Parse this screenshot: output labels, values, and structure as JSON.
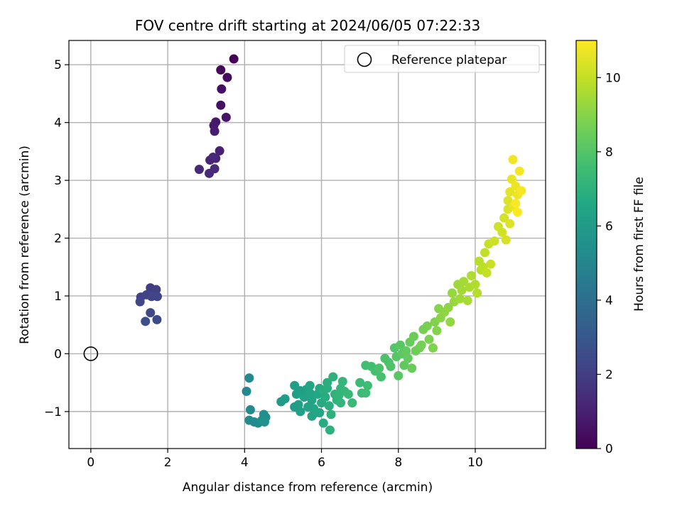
{
  "chart_data": {
    "type": "scatter",
    "title": "FOV centre drift starting at 2024/06/05 07:22:33",
    "xlabel": "Angular distance from reference (arcmin)",
    "ylabel": "Rotation from reference (arcmin)",
    "xlim": [
      -0.57,
      11.83
    ],
    "ylim": [
      -1.64,
      5.42
    ],
    "xticks": [
      0,
      2,
      4,
      6,
      8,
      10
    ],
    "yticks": [
      -1,
      0,
      1,
      2,
      3,
      4,
      5
    ],
    "xtick_labels": [
      "0",
      "2",
      "4",
      "6",
      "8",
      "10"
    ],
    "ytick_labels": [
      "−1",
      "0",
      "1",
      "2",
      "3",
      "4",
      "5"
    ],
    "grid": true,
    "legend": {
      "position": "top-right",
      "label": "Reference platepar"
    },
    "reference_point": {
      "x": 0,
      "y": 0
    },
    "colorbar": {
      "label": "Hours from first FF file",
      "range": [
        0,
        11
      ],
      "ticks": [
        0,
        2,
        4,
        6,
        8,
        10
      ],
      "tick_labels": [
        "0",
        "2",
        "4",
        "6",
        "8",
        "10"
      ],
      "colormap": "viridis"
    },
    "points": [
      {
        "x": 3.72,
        "y": 5.1,
        "h": 0.1
      },
      {
        "x": 3.38,
        "y": 4.91,
        "h": 0.2
      },
      {
        "x": 3.55,
        "y": 4.78,
        "h": 0.3
      },
      {
        "x": 3.4,
        "y": 4.58,
        "h": 0.4
      },
      {
        "x": 3.38,
        "y": 4.3,
        "h": 0.5
      },
      {
        "x": 3.52,
        "y": 4.09,
        "h": 0.6
      },
      {
        "x": 3.25,
        "y": 4.01,
        "h": 0.7
      },
      {
        "x": 3.2,
        "y": 3.95,
        "h": 0.8
      },
      {
        "x": 3.22,
        "y": 3.85,
        "h": 0.9
      },
      {
        "x": 3.35,
        "y": 3.51,
        "h": 1.0
      },
      {
        "x": 3.25,
        "y": 3.38,
        "h": 1.1
      },
      {
        "x": 3.1,
        "y": 3.35,
        "h": 1.15
      },
      {
        "x": 3.18,
        "y": 3.4,
        "h": 1.2
      },
      {
        "x": 2.82,
        "y": 3.19,
        "h": 1.25
      },
      {
        "x": 3.22,
        "y": 3.2,
        "h": 1.3
      },
      {
        "x": 3.08,
        "y": 3.12,
        "h": 1.35
      },
      {
        "x": 1.55,
        "y": 1.14,
        "h": 2.0
      },
      {
        "x": 1.7,
        "y": 1.11,
        "h": 2.05
      },
      {
        "x": 1.3,
        "y": 0.98,
        "h": 2.1
      },
      {
        "x": 1.45,
        "y": 1.02,
        "h": 2.15
      },
      {
        "x": 1.58,
        "y": 0.99,
        "h": 2.2
      },
      {
        "x": 1.73,
        "y": 0.99,
        "h": 2.25
      },
      {
        "x": 1.28,
        "y": 0.9,
        "h": 2.3
      },
      {
        "x": 1.55,
        "y": 0.71,
        "h": 2.4
      },
      {
        "x": 1.72,
        "y": 0.59,
        "h": 2.5
      },
      {
        "x": 1.42,
        "y": 0.56,
        "h": 2.6
      },
      {
        "x": 4.12,
        "y": -0.42,
        "h": 5.1
      },
      {
        "x": 4.05,
        "y": -0.65,
        "h": 5.15
      },
      {
        "x": 4.15,
        "y": -0.97,
        "h": 5.2
      },
      {
        "x": 4.12,
        "y": -1.15,
        "h": 5.25
      },
      {
        "x": 4.25,
        "y": -1.18,
        "h": 5.3
      },
      {
        "x": 4.35,
        "y": -1.2,
        "h": 5.35
      },
      {
        "x": 4.5,
        "y": -1.05,
        "h": 5.4
      },
      {
        "x": 4.55,
        "y": -1.1,
        "h": 5.45
      },
      {
        "x": 4.45,
        "y": -1.15,
        "h": 5.5
      },
      {
        "x": 4.52,
        "y": -1.18,
        "h": 5.55
      },
      {
        "x": 4.95,
        "y": -0.83,
        "h": 6.0
      },
      {
        "x": 5.05,
        "y": -0.78,
        "h": 6.05
      },
      {
        "x": 5.3,
        "y": -0.55,
        "h": 6.1
      },
      {
        "x": 5.35,
        "y": -0.7,
        "h": 6.15
      },
      {
        "x": 5.4,
        "y": -0.88,
        "h": 6.2
      },
      {
        "x": 5.45,
        "y": -1.0,
        "h": 6.25
      },
      {
        "x": 5.55,
        "y": -0.75,
        "h": 6.3
      },
      {
        "x": 5.6,
        "y": -0.62,
        "h": 6.35
      },
      {
        "x": 5.7,
        "y": -0.55,
        "h": 6.4
      },
      {
        "x": 5.75,
        "y": -0.8,
        "h": 6.45
      },
      {
        "x": 5.8,
        "y": -0.95,
        "h": 6.5
      },
      {
        "x": 5.85,
        "y": -1.02,
        "h": 6.55
      },
      {
        "x": 5.9,
        "y": -0.7,
        "h": 6.6
      },
      {
        "x": 5.95,
        "y": -0.6,
        "h": 6.65
      },
      {
        "x": 6.0,
        "y": -0.85,
        "h": 6.7
      },
      {
        "x": 6.05,
        "y": -1.2,
        "h": 6.75
      },
      {
        "x": 6.1,
        "y": -0.75,
        "h": 6.8
      },
      {
        "x": 6.15,
        "y": -0.5,
        "h": 6.85
      },
      {
        "x": 6.2,
        "y": -0.9,
        "h": 6.9
      },
      {
        "x": 6.25,
        "y": -1.05,
        "h": 6.95
      },
      {
        "x": 6.22,
        "y": -1.32,
        "h": 7.0
      },
      {
        "x": 5.3,
        "y": -0.92,
        "h": 6.05
      },
      {
        "x": 5.65,
        "y": -0.92,
        "h": 6.3
      },
      {
        "x": 5.75,
        "y": -1.08,
        "h": 6.4
      },
      {
        "x": 5.95,
        "y": -1.02,
        "h": 6.55
      },
      {
        "x": 6.3,
        "y": -0.4,
        "h": 7.0
      },
      {
        "x": 6.35,
        "y": -0.7,
        "h": 7.05
      },
      {
        "x": 6.4,
        "y": -0.8,
        "h": 7.1
      },
      {
        "x": 6.5,
        "y": -0.6,
        "h": 7.15
      },
      {
        "x": 6.55,
        "y": -0.48,
        "h": 7.2
      },
      {
        "x": 6.6,
        "y": -0.65,
        "h": 7.25
      },
      {
        "x": 6.7,
        "y": -0.7,
        "h": 7.3
      },
      {
        "x": 6.8,
        "y": -0.85,
        "h": 7.35
      },
      {
        "x": 6.5,
        "y": -0.85,
        "h": 7.2
      },
      {
        "x": 6.05,
        "y": -0.63,
        "h": 6.8
      },
      {
        "x": 5.7,
        "y": -0.68,
        "h": 6.45
      },
      {
        "x": 5.45,
        "y": -0.64,
        "h": 6.2
      },
      {
        "x": 6.45,
        "y": -0.72,
        "h": 7.15
      },
      {
        "x": 6.15,
        "y": -0.6,
        "h": 6.9
      },
      {
        "x": 7.0,
        "y": -0.5,
        "h": 7.4
      },
      {
        "x": 7.05,
        "y": -0.68,
        "h": 7.45
      },
      {
        "x": 7.15,
        "y": -0.68,
        "h": 7.5
      },
      {
        "x": 7.2,
        "y": -0.55,
        "h": 7.55
      },
      {
        "x": 7.15,
        "y": -0.2,
        "h": 7.6
      },
      {
        "x": 7.3,
        "y": -0.22,
        "h": 7.65
      },
      {
        "x": 7.4,
        "y": -0.3,
        "h": 7.7
      },
      {
        "x": 7.55,
        "y": -0.4,
        "h": 7.75
      },
      {
        "x": 7.5,
        "y": -0.25,
        "h": 7.8
      },
      {
        "x": 7.65,
        "y": -0.08,
        "h": 7.85
      },
      {
        "x": 7.75,
        "y": -0.15,
        "h": 7.9
      },
      {
        "x": 7.8,
        "y": -0.22,
        "h": 7.95
      },
      {
        "x": 7.9,
        "y": 0.1,
        "h": 8.0
      },
      {
        "x": 7.95,
        "y": -0.05,
        "h": 8.05
      },
      {
        "x": 8.0,
        "y": -0.38,
        "h": 8.1
      },
      {
        "x": 8.05,
        "y": 0.15,
        "h": 8.15
      },
      {
        "x": 8.1,
        "y": 0.0,
        "h": 8.2
      },
      {
        "x": 8.15,
        "y": -0.2,
        "h": 8.25
      },
      {
        "x": 8.2,
        "y": 0.05,
        "h": 8.3
      },
      {
        "x": 8.25,
        "y": -0.08,
        "h": 8.35
      },
      {
        "x": 8.3,
        "y": 0.2,
        "h": 8.4
      },
      {
        "x": 8.35,
        "y": -0.25,
        "h": 8.45
      },
      {
        "x": 8.4,
        "y": 0.3,
        "h": 8.5
      },
      {
        "x": 8.45,
        "y": 0.05,
        "h": 8.55
      },
      {
        "x": 8.55,
        "y": 0.1,
        "h": 8.6
      },
      {
        "x": 8.6,
        "y": 0.15,
        "h": 8.65
      },
      {
        "x": 8.65,
        "y": 0.42,
        "h": 8.7
      },
      {
        "x": 8.75,
        "y": 0.48,
        "h": 8.75
      },
      {
        "x": 8.8,
        "y": 0.25,
        "h": 8.8
      },
      {
        "x": 8.9,
        "y": 0.1,
        "h": 8.85
      },
      {
        "x": 8.95,
        "y": 0.55,
        "h": 8.9
      },
      {
        "x": 9.0,
        "y": 0.4,
        "h": 8.95
      },
      {
        "x": 9.05,
        "y": 0.78,
        "h": 9.0
      },
      {
        "x": 9.1,
        "y": 0.62,
        "h": 9.05
      },
      {
        "x": 9.2,
        "y": 0.72,
        "h": 9.1
      },
      {
        "x": 9.3,
        "y": 0.8,
        "h": 9.15
      },
      {
        "x": 9.35,
        "y": 0.55,
        "h": 9.2
      },
      {
        "x": 9.4,
        "y": 1.05,
        "h": 9.25
      },
      {
        "x": 9.45,
        "y": 0.9,
        "h": 9.3
      },
      {
        "x": 9.55,
        "y": 1.2,
        "h": 9.35
      },
      {
        "x": 9.6,
        "y": 0.95,
        "h": 9.4
      },
      {
        "x": 9.65,
        "y": 1.1,
        "h": 9.45
      },
      {
        "x": 9.7,
        "y": 1.25,
        "h": 9.5
      },
      {
        "x": 9.8,
        "y": 0.92,
        "h": 9.55
      },
      {
        "x": 9.85,
        "y": 1.15,
        "h": 9.6
      },
      {
        "x": 9.9,
        "y": 1.35,
        "h": 9.65
      },
      {
        "x": 10.0,
        "y": 1.2,
        "h": 9.7
      },
      {
        "x": 10.05,
        "y": 1.05,
        "h": 9.75
      },
      {
        "x": 10.1,
        "y": 1.6,
        "h": 9.8
      },
      {
        "x": 10.15,
        "y": 1.45,
        "h": 9.85
      },
      {
        "x": 10.2,
        "y": 1.5,
        "h": 9.9
      },
      {
        "x": 10.25,
        "y": 1.75,
        "h": 9.95
      },
      {
        "x": 10.3,
        "y": 1.4,
        "h": 10.0
      },
      {
        "x": 10.35,
        "y": 1.9,
        "h": 10.05
      },
      {
        "x": 10.4,
        "y": 1.55,
        "h": 10.1
      },
      {
        "x": 10.5,
        "y": 1.95,
        "h": 10.15
      },
      {
        "x": 10.6,
        "y": 2.2,
        "h": 10.2
      },
      {
        "x": 10.7,
        "y": 2.1,
        "h": 10.25
      },
      {
        "x": 10.75,
        "y": 2.35,
        "h": 10.3
      },
      {
        "x": 10.8,
        "y": 1.97,
        "h": 10.35
      },
      {
        "x": 10.85,
        "y": 2.5,
        "h": 10.4
      },
      {
        "x": 10.9,
        "y": 2.25,
        "h": 10.45
      },
      {
        "x": 10.85,
        "y": 2.65,
        "h": 10.5
      },
      {
        "x": 10.9,
        "y": 2.8,
        "h": 10.55
      },
      {
        "x": 10.95,
        "y": 3.02,
        "h": 10.6
      },
      {
        "x": 11.0,
        "y": 2.55,
        "h": 10.65
      },
      {
        "x": 11.05,
        "y": 2.9,
        "h": 10.7
      },
      {
        "x": 11.1,
        "y": 2.75,
        "h": 10.75
      },
      {
        "x": 10.98,
        "y": 3.36,
        "h": 10.8
      },
      {
        "x": 11.15,
        "y": 3.16,
        "h": 10.85
      },
      {
        "x": 11.2,
        "y": 2.82,
        "h": 10.9
      },
      {
        "x": 11.05,
        "y": 2.6,
        "h": 10.95
      },
      {
        "x": 11.1,
        "y": 2.45,
        "h": 11.0
      }
    ]
  }
}
